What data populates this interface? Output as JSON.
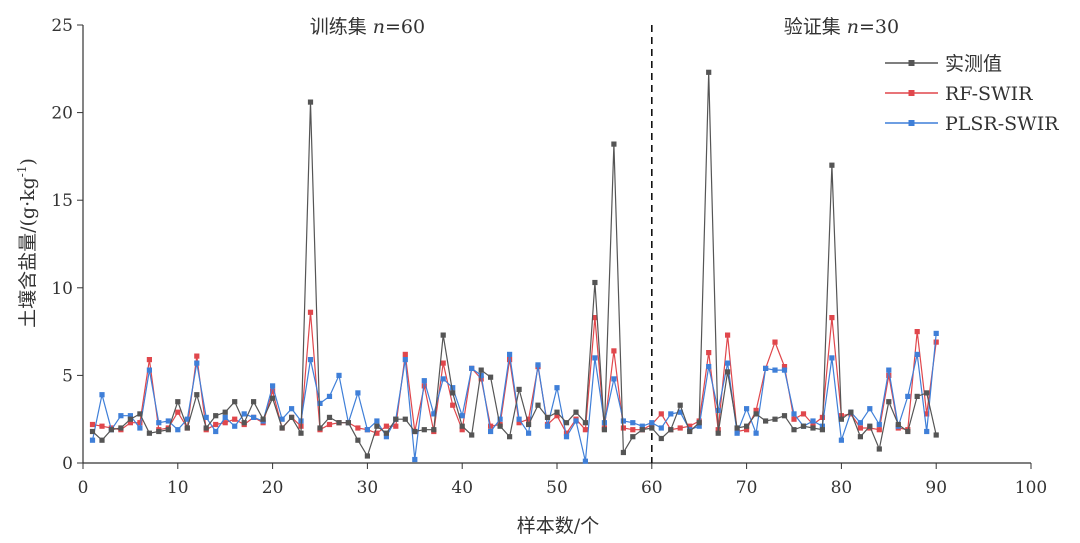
{
  "chart_data": {
    "type": "line",
    "xlabel": "样本数/个",
    "ylabel_main": "土壤含盐量/(g·kg",
    "ylabel_sup": "-1",
    "ylabel_tail": ")",
    "xlim": [
      0,
      100
    ],
    "ylim": [
      0,
      25
    ],
    "xticks": [
      0,
      10,
      20,
      30,
      40,
      50,
      60,
      70,
      80,
      90,
      100
    ],
    "yticks": [
      0,
      5,
      10,
      15,
      20,
      25
    ],
    "divider_x": 60,
    "annotations": [
      {
        "prefix": "训练集 ",
        "var": "n",
        "suffix": "=60",
        "x": 30
      },
      {
        "prefix": "验证集 ",
        "var": "n",
        "suffix": "=30",
        "x": 80
      }
    ],
    "legend_position": "top-right",
    "x": [
      1,
      2,
      3,
      4,
      5,
      6,
      7,
      8,
      9,
      10,
      11,
      12,
      13,
      14,
      15,
      16,
      17,
      18,
      19,
      20,
      21,
      22,
      23,
      24,
      25,
      26,
      27,
      28,
      29,
      30,
      31,
      32,
      33,
      34,
      35,
      36,
      37,
      38,
      39,
      40,
      41,
      42,
      43,
      44,
      45,
      46,
      47,
      48,
      49,
      50,
      51,
      52,
      53,
      54,
      55,
      56,
      57,
      58,
      59,
      60,
      61,
      62,
      63,
      64,
      65,
      66,
      67,
      68,
      69,
      70,
      71,
      72,
      73,
      74,
      75,
      76,
      77,
      78,
      79,
      80,
      81,
      82,
      83,
      84,
      85,
      86,
      87,
      88,
      89,
      90
    ],
    "series": [
      {
        "name": "实测值",
        "color": "#555555",
        "values": [
          1.8,
          1.3,
          1.9,
          2.0,
          2.5,
          2.8,
          1.7,
          1.8,
          1.9,
          3.5,
          2.0,
          3.9,
          2.0,
          2.7,
          2.9,
          3.5,
          2.3,
          3.5,
          2.5,
          3.7,
          2.0,
          2.6,
          1.7,
          20.6,
          2.0,
          2.6,
          2.3,
          2.3,
          1.3,
          0.4,
          2.1,
          1.7,
          2.5,
          2.5,
          1.8,
          1.9,
          1.9,
          7.3,
          4.0,
          2.1,
          1.6,
          5.3,
          4.9,
          2.1,
          1.5,
          4.2,
          2.2,
          3.3,
          2.6,
          2.9,
          2.3,
          2.9,
          2.3,
          10.3,
          1.9,
          18.2,
          0.6,
          1.5,
          1.9,
          2.0,
          1.4,
          1.9,
          3.3,
          1.8,
          2.3,
          22.3,
          1.7,
          5.2,
          2.0,
          2.1,
          2.8,
          2.4,
          2.5,
          2.7,
          1.9,
          2.1,
          2.0,
          1.9,
          17.0,
          2.5,
          2.9,
          1.5,
          2.1,
          0.8,
          3.5,
          2.2,
          1.8,
          3.8,
          4.0,
          1.6
        ]
      },
      {
        "name": "RF-SWIR",
        "color": "#e0474c",
        "values": [
          2.2,
          2.1,
          2.0,
          1.9,
          2.3,
          2.3,
          5.9,
          1.9,
          2.0,
          2.9,
          2.0,
          6.1,
          1.9,
          2.2,
          2.3,
          2.5,
          2.2,
          2.6,
          2.3,
          4.1,
          2.0,
          2.6,
          2.1,
          8.6,
          1.9,
          2.2,
          2.3,
          2.3,
          2.0,
          1.9,
          1.7,
          2.1,
          2.1,
          6.2,
          1.8,
          4.4,
          1.8,
          5.7,
          3.3,
          1.9,
          5.4,
          4.8,
          2.1,
          2.2,
          5.9,
          2.3,
          2.5,
          5.5,
          2.2,
          2.7,
          1.7,
          2.5,
          1.9,
          8.3,
          2.0,
          6.4,
          2.0,
          1.9,
          1.9,
          2.2,
          2.8,
          1.9,
          2.0,
          2.1,
          2.4,
          6.3,
          1.9,
          7.3,
          1.8,
          1.9,
          3.0,
          5.4,
          6.9,
          5.5,
          2.5,
          2.8,
          2.2,
          2.6,
          8.3,
          2.7,
          2.8,
          2.0,
          2.0,
          1.9,
          5.0,
          2.0,
          1.9,
          7.5,
          2.8,
          6.9
        ]
      },
      {
        "name": "PLSR-SWIR",
        "color": "#3f7fd8",
        "values": [
          1.3,
          3.9,
          1.9,
          2.7,
          2.7,
          2.0,
          5.3,
          2.3,
          2.4,
          1.9,
          2.5,
          5.7,
          2.6,
          1.8,
          2.6,
          2.1,
          2.8,
          2.6,
          2.4,
          4.4,
          2.5,
          3.1,
          2.4,
          5.9,
          3.4,
          3.8,
          5.0,
          2.3,
          4.0,
          1.9,
          2.4,
          1.5,
          2.5,
          5.9,
          0.2,
          4.7,
          2.8,
          4.8,
          4.3,
          2.7,
          5.4,
          5.0,
          1.8,
          2.5,
          6.2,
          2.5,
          1.7,
          5.6,
          2.1,
          4.3,
          1.5,
          2.4,
          0.1,
          6.0,
          2.3,
          4.8,
          2.4,
          2.3,
          2.1,
          2.3,
          2.0,
          2.8,
          2.9,
          1.9,
          2.1,
          5.5,
          3.0,
          5.7,
          1.7,
          3.1,
          1.7,
          5.4,
          5.3,
          5.3,
          2.8,
          2.1,
          2.4,
          2.1,
          6.0,
          1.3,
          2.9,
          2.3,
          3.1,
          2.2,
          5.3,
          2.1,
          3.8,
          6.2,
          1.8,
          7.4
        ]
      }
    ]
  }
}
